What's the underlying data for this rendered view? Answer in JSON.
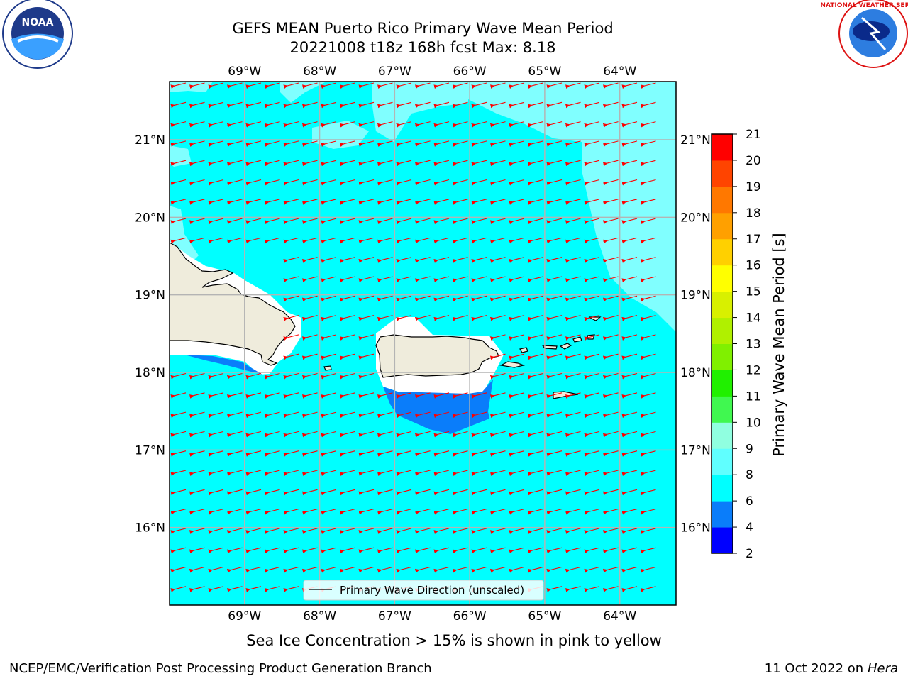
{
  "title": {
    "line1": "GEFS MEAN Puerto Rico Primary Wave Mean Period",
    "line2": "20221008 t18z 168h fcst   Max: 8.18"
  },
  "logos": {
    "noaa_text": "NOAA",
    "nws_text": "NATIONAL WEATHER SERVICE"
  },
  "map": {
    "lon_labels": [
      "69°W",
      "68°W",
      "67°W",
      "66°W",
      "65°W",
      "64°W"
    ],
    "lat_labels": [
      "21°N",
      "20°N",
      "19°N",
      "18°N",
      "17°N",
      "16°N"
    ],
    "lon_range": [
      -70.0,
      -63.25
    ],
    "lat_range": [
      15.0,
      21.75
    ],
    "colors": {
      "ocean": "#00ffff",
      "light_ocean": "#80ffff",
      "shallow": "#0a7dfa",
      "land": "#efecdc",
      "arrow": "#ff0000",
      "grid": "#b4b4b4"
    },
    "legend": "Primary Wave Direction (unscaled)"
  },
  "colorbar": {
    "label": "Primary Wave Mean Period [s]",
    "ticks": [
      "2",
      "4",
      "6",
      "8",
      "9",
      "10",
      "11",
      "12",
      "13",
      "14",
      "15",
      "16",
      "17",
      "18",
      "19",
      "20",
      "21"
    ],
    "colors": [
      "#0000ff",
      "#0a7dfa",
      "#00ffff",
      "#60ffff",
      "#90ffe0",
      "#40f850",
      "#20f000",
      "#80f000",
      "#b0f000",
      "#d8f000",
      "#ffff00",
      "#ffd000",
      "#ffa000",
      "#ff7800",
      "#ff4400",
      "#ff0000"
    ]
  },
  "note": "Sea Ice Concentration > 15% is shown in pink to yellow",
  "footer": {
    "left": "NCEP/EMC/Verification Post Processing Product Generation Branch",
    "right_prefix": "11 Oct 2022 on ",
    "right_machine": "Hera"
  }
}
